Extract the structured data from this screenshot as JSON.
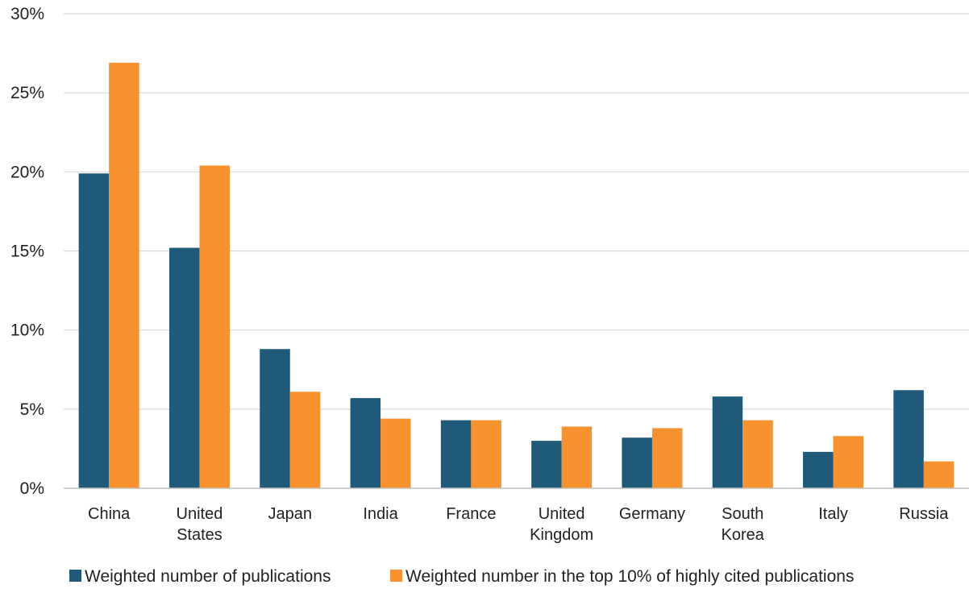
{
  "chart_data": {
    "type": "bar",
    "categories": [
      [
        "China"
      ],
      [
        "United",
        "States"
      ],
      [
        "Japan"
      ],
      [
        "India"
      ],
      [
        "France"
      ],
      [
        "United",
        "Kingdom"
      ],
      [
        "Germany"
      ],
      [
        "South",
        "Korea"
      ],
      [
        "Italy"
      ],
      [
        "Russia"
      ]
    ],
    "series": [
      {
        "name": "Weighted number of publications",
        "color": "#1f5a7a",
        "values": [
          19.9,
          15.2,
          8.8,
          5.7,
          4.3,
          3.0,
          3.2,
          5.8,
          2.3,
          6.2
        ]
      },
      {
        "name": "Weighted number in the top 10% of highly cited publications",
        "color": "#f7922f",
        "values": [
          26.9,
          20.4,
          6.1,
          4.4,
          4.3,
          3.9,
          3.8,
          4.3,
          3.3,
          1.7
        ]
      }
    ],
    "ylim": [
      0,
      30
    ],
    "yticks": [
      "0%",
      "5%",
      "10%",
      "15%",
      "20%",
      "25%",
      "30%"
    ],
    "grid": true,
    "legend": "bottom",
    "title": "",
    "xlabel": "",
    "ylabel": ""
  }
}
